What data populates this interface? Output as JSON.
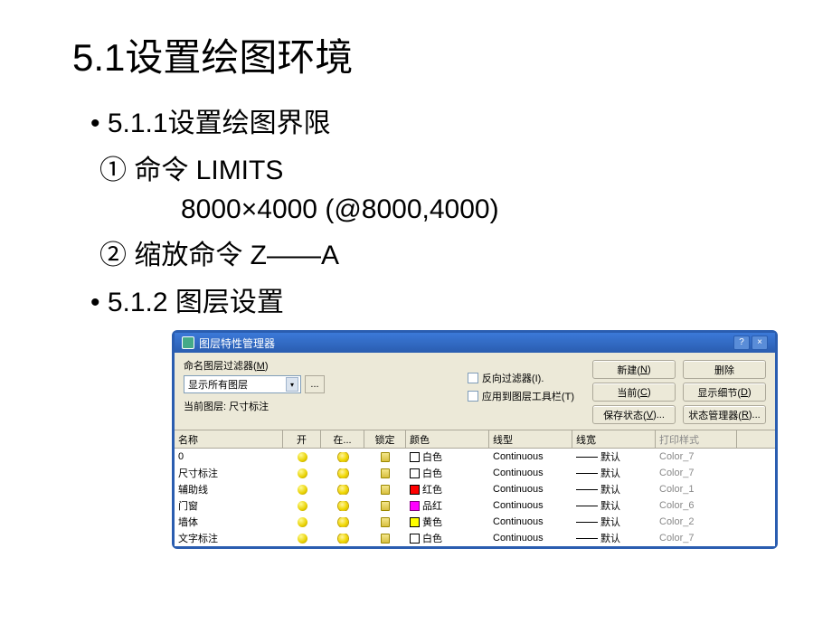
{
  "title": "5.1设置绘图环境",
  "bullets": {
    "b1": "5.1.1设置绘图界限",
    "s1": "① 命令 LIMITS",
    "s2": "8000×4000 (@8000,4000)",
    "s3": "② 缩放命令 Z——A",
    "b2": "5.1.2 图层设置"
  },
  "dialog": {
    "title": "图层特性管理器",
    "help": "?",
    "close": "×",
    "filter_label_pre": "命名图层过滤器(",
    "filter_label_hot": "M",
    "filter_label_post": ")",
    "combo_value": "显示所有图层",
    "dots": "...",
    "current_label": "当前图层:",
    "current_value": "尺寸标注",
    "chk1_pre": "反向过滤器(",
    "chk1_hot": "I",
    "chk1_post": ").",
    "chk2_pre": "应用到图层工具栏(",
    "chk2_hot": "T",
    "chk2_post": ")",
    "buttons": {
      "new_pre": "新建(",
      "new_hot": "N",
      "new_post": ")",
      "del": "删除",
      "cur_pre": "当前(",
      "cur_hot": "C",
      "cur_post": ")",
      "det_pre": "显示细节(",
      "det_hot": "D",
      "det_post": ")",
      "save_pre": "保存状态(",
      "save_hot": "V",
      "save_post": ")...",
      "mgr_pre": "状态管理器(",
      "mgr_hot": "R",
      "mgr_post": ")..."
    },
    "columns": {
      "name": "名称",
      "on": "开",
      "freeze": "在...",
      "lock": "锁定",
      "color": "颜色",
      "ltype": "线型",
      "lweight": "线宽",
      "plot": "打印样式"
    },
    "rows": [
      {
        "name": "0",
        "color_label": "白色",
        "swatch": "sw-white",
        "ltype": "Continuous",
        "lweight": "默认",
        "plot": "Color_7"
      },
      {
        "name": "尺寸标注",
        "color_label": "白色",
        "swatch": "sw-white",
        "ltype": "Continuous",
        "lweight": "默认",
        "plot": "Color_7"
      },
      {
        "name": "辅助线",
        "color_label": "红色",
        "swatch": "sw-red",
        "ltype": "Continuous",
        "lweight": "默认",
        "plot": "Color_1"
      },
      {
        "name": "门窗",
        "color_label": "品红",
        "swatch": "sw-magenta",
        "ltype": "Continuous",
        "lweight": "默认",
        "plot": "Color_6"
      },
      {
        "name": "墙体",
        "color_label": "黄色",
        "swatch": "sw-yellow",
        "ltype": "Continuous",
        "lweight": "默认",
        "plot": "Color_2"
      },
      {
        "name": "文字标注",
        "color_label": "白色",
        "swatch": "sw-white",
        "ltype": "Continuous",
        "lweight": "默认",
        "plot": "Color_7"
      }
    ]
  }
}
